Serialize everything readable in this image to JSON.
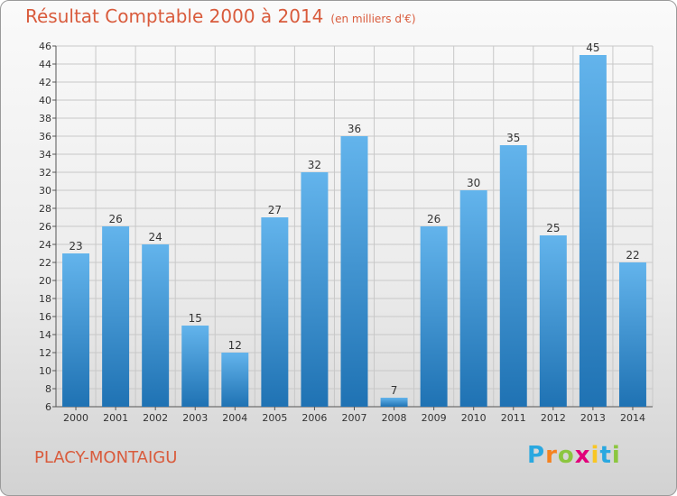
{
  "title": "Résultat Comptable 2000 à 2014",
  "subtitle": "(en milliers d'€)",
  "commune": "PLACY-MONTAIGU",
  "brand": {
    "letters": [
      "P",
      "r",
      "o",
      "x",
      "i",
      "t",
      "i"
    ],
    "colors": [
      "#2aa8e0",
      "#f58220",
      "#8cc63f",
      "#e2007a",
      "#f9c623",
      "#2aa8e0",
      "#8cc63f"
    ]
  },
  "colors": {
    "title": "#d95b3c",
    "bar_light": "#63b4ec",
    "bar_dark": "#1f72b3"
  },
  "chart_data": {
    "type": "bar",
    "categories": [
      "2000",
      "2001",
      "2002",
      "2003",
      "2004",
      "2005",
      "2006",
      "2007",
      "2008",
      "2009",
      "2010",
      "2011",
      "2012",
      "2013",
      "2014"
    ],
    "values": [
      23,
      26,
      24,
      15,
      12,
      27,
      32,
      36,
      7,
      26,
      30,
      35,
      25,
      45,
      22
    ],
    "ylim": [
      6,
      46
    ],
    "yticks": [
      6,
      8,
      10,
      12,
      14,
      16,
      18,
      20,
      22,
      24,
      26,
      28,
      30,
      32,
      34,
      36,
      38,
      40,
      42,
      44,
      46
    ],
    "grid": true,
    "legend": "none"
  }
}
